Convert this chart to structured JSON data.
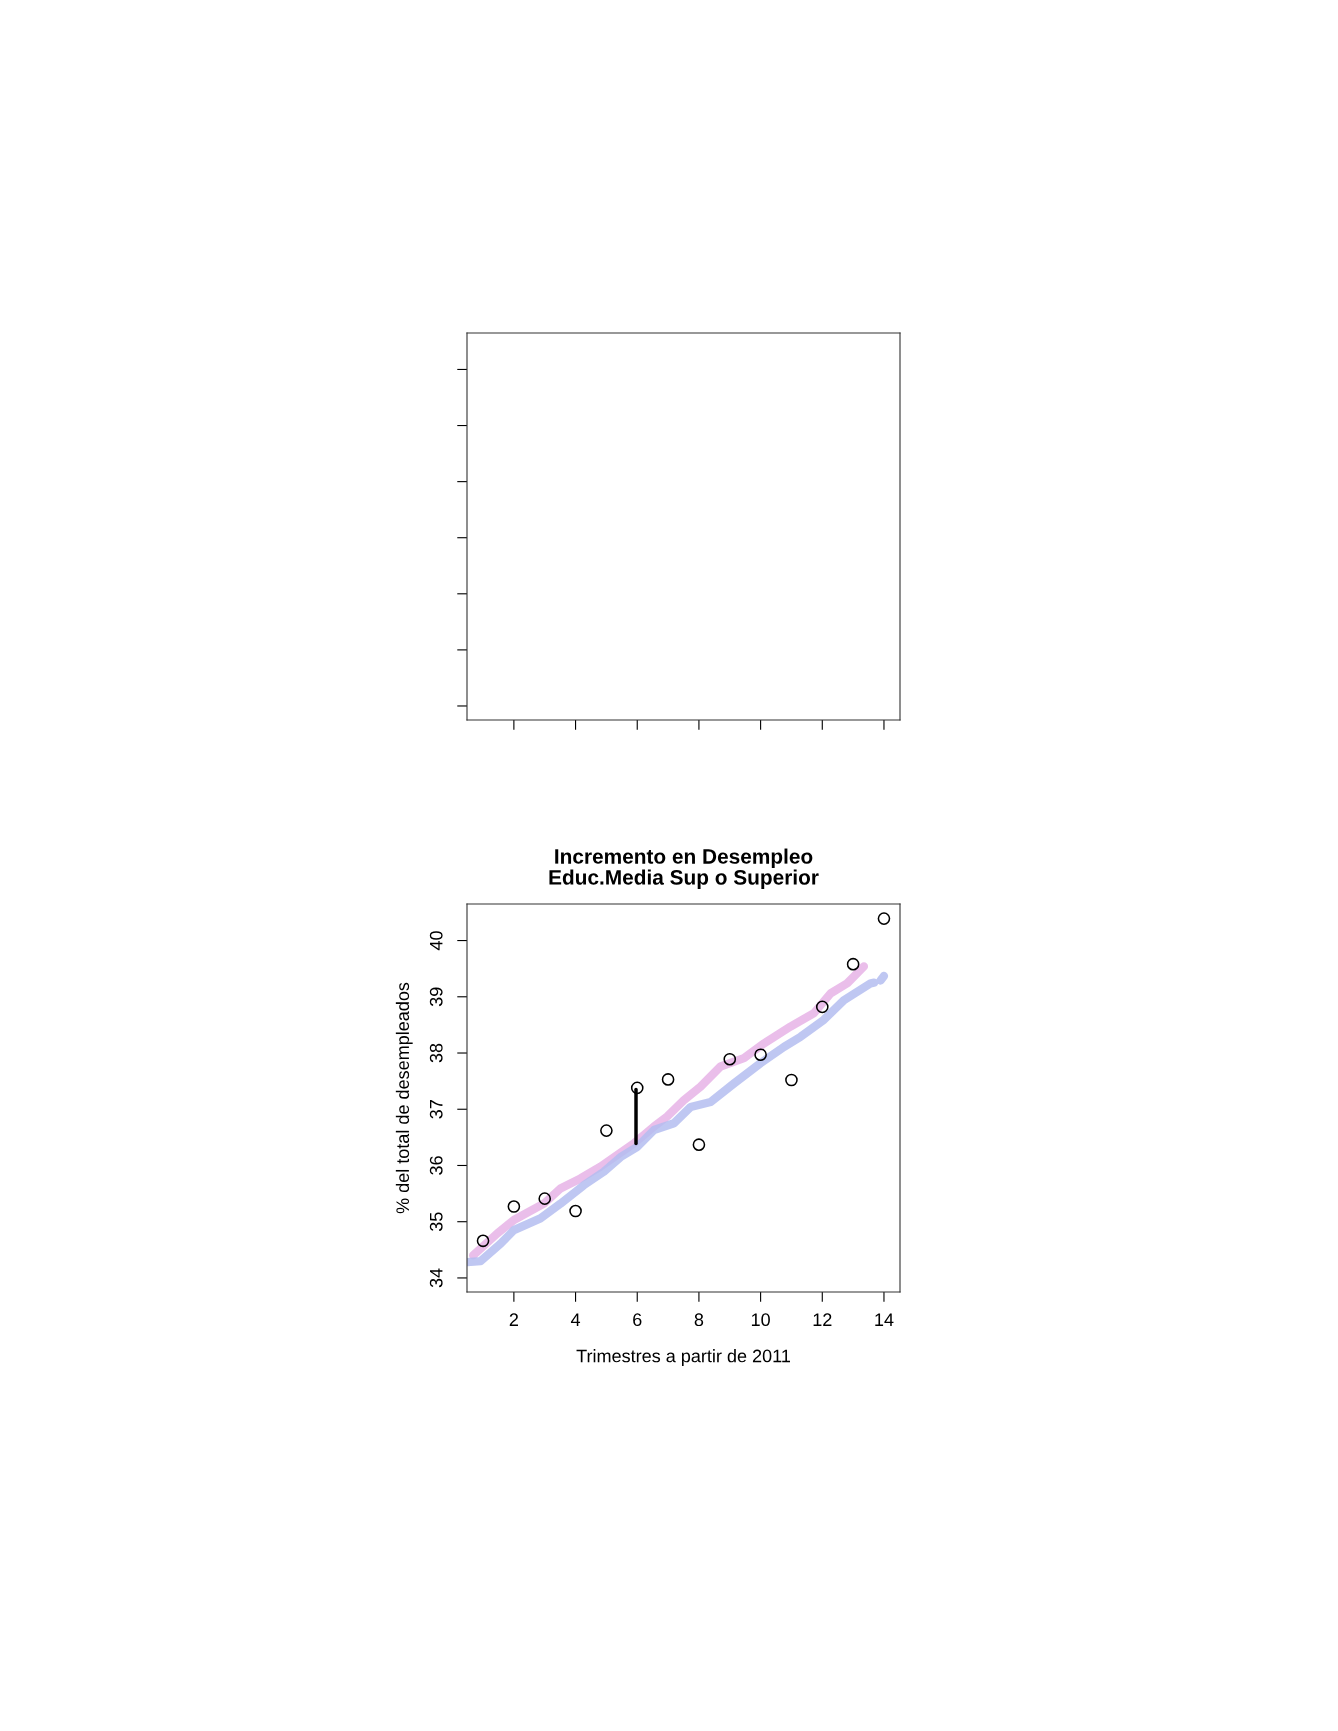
{
  "chart_data": [
    {
      "type": "other"
    },
    {
      "type": "scatter",
      "title": "Incremento en Desempleo\nEduc.Media Sup o Superior",
      "xlabel": "Trimestres a partir de 2011",
      "ylabel": "% del total de desempleados",
      "xlim": [
        0.48,
        14.52
      ],
      "ylim": [
        33.75,
        40.65
      ],
      "xticks": [
        2,
        4,
        6,
        8,
        10,
        12,
        14
      ],
      "yticks": [
        34,
        35,
        36,
        37,
        38,
        39,
        40
      ],
      "grid": false,
      "series": [
        {
          "marker": "circle",
          "color": "#000000",
          "x": [
            1,
            2,
            3,
            4,
            5,
            6,
            7,
            8,
            9,
            10,
            11,
            12,
            13,
            14
          ],
          "values": [
            34.66,
            35.27,
            35.41,
            35.19,
            36.62,
            37.38,
            37.53,
            36.37,
            37.89,
            37.97,
            37.52,
            38.82,
            39.58,
            40.39
          ]
        },
        {
          "type": "line",
          "marker": "none",
          "color": "#e6b3e6",
          "x": [
            0.68,
            1.46,
            2.0,
            2.97,
            3.51,
            4.16,
            4.81,
            5.89,
            6.54,
            6.97,
            7.51,
            8.05,
            8.7,
            9.46,
            10.11,
            10.97,
            11.73,
            12.27,
            12.81,
            13.35
          ],
          "values": [
            34.4,
            34.79,
            35.03,
            35.32,
            35.59,
            35.77,
            35.98,
            36.39,
            36.69,
            36.87,
            37.16,
            37.4,
            37.76,
            37.91,
            38.17,
            38.47,
            38.71,
            39.06,
            39.24,
            39.54
          ]
        },
        {
          "type": "line",
          "marker": "none",
          "color": "#b4bdf0",
          "x": [
            0.49,
            0.92,
            1.57,
            2.0,
            2.86,
            3.51,
            4.27,
            4.92,
            5.46,
            6.0,
            6.54,
            7.19,
            7.73,
            8.38,
            9.14,
            10.0,
            10.76,
            11.3,
            12.05,
            12.7,
            13.57,
            13.68,
            13.8,
            13.89,
            14.0
          ],
          "values": [
            34.28,
            34.3,
            34.61,
            34.85,
            35.06,
            35.32,
            35.65,
            35.89,
            36.15,
            36.33,
            36.63,
            36.75,
            37.04,
            37.13,
            37.46,
            37.82,
            38.11,
            38.29,
            38.59,
            38.94,
            39.24,
            39.25,
            null,
            39.29,
            39.37
          ]
        },
        {
          "type": "line",
          "marker": "none",
          "color": "#000000",
          "x": [
            5.96,
            5.96
          ],
          "values": [
            36.39,
            37.35
          ]
        }
      ]
    }
  ]
}
